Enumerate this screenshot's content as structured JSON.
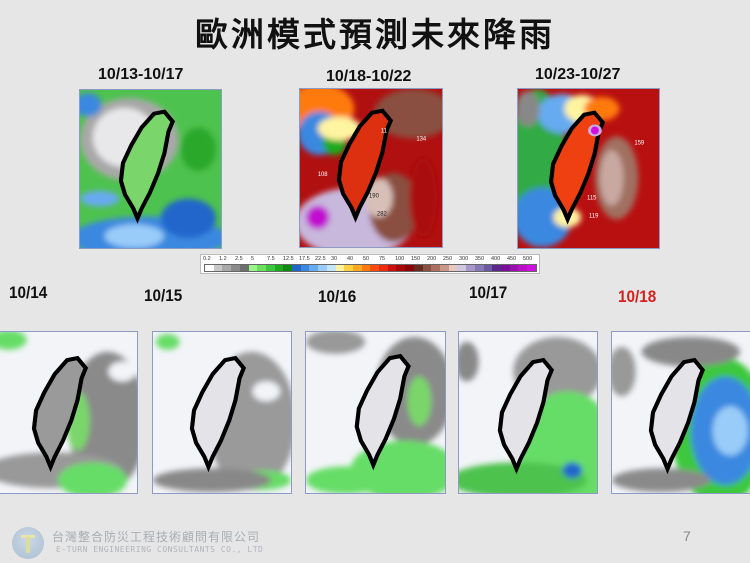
{
  "title": "歐洲模式預測未來降雨",
  "period_panels": [
    {
      "label": "10/13-10/17",
      "theme": "green"
    },
    {
      "label": "10/18-10/22",
      "theme": "red"
    },
    {
      "label": "10/23-10/27",
      "theme": "redblue"
    }
  ],
  "period_annotations": {
    "p2": [
      "11",
      "134",
      "108",
      "190",
      "282"
    ],
    "p3": [
      "159",
      "115",
      "119"
    ]
  },
  "legend": {
    "ticks": [
      "0.2",
      "1.2",
      "2.5",
      "5",
      "7.5",
      "12.5",
      "17.5",
      "22.5",
      "30",
      "40",
      "50",
      "75",
      "100",
      "150",
      "200",
      "250",
      "300",
      "350",
      "400",
      "450",
      "500"
    ],
    "colors": [
      "#ffffff",
      "#c8c8c8",
      "#a8a8a8",
      "#8a8a8a",
      "#6e6e6e",
      "#9af58a",
      "#6ee060",
      "#3cc83c",
      "#1eaa1e",
      "#118a11",
      "#2266cc",
      "#3a88e0",
      "#66aaf0",
      "#99ccf8",
      "#c4e6fc",
      "#fff4a0",
      "#ffd040",
      "#ffa820",
      "#ff7a10",
      "#ff4a10",
      "#ee2a10",
      "#cc1010",
      "#aa0808",
      "#8a0606",
      "#6a2a20",
      "#8a5040",
      "#aa7060",
      "#c89888",
      "#e8c8c0",
      "#d0c8e0",
      "#aa98cc",
      "#8878b8",
      "#6a5aa0",
      "#5a2888",
      "#7a1098",
      "#9a10b0",
      "#bb10c8",
      "#d010dc"
    ]
  },
  "daily_panels": [
    {
      "label": "10/14",
      "color": "#111111",
      "theme": "gray-green"
    },
    {
      "label": "10/15",
      "color": "#111111",
      "theme": "gray"
    },
    {
      "label": "10/16",
      "color": "#111111",
      "theme": "gray-green-south"
    },
    {
      "label": "10/17",
      "color": "#111111",
      "theme": "green-east"
    },
    {
      "label": "10/18",
      "color": "#d42020",
      "theme": "blue-east"
    }
  ],
  "footer": {
    "company_cn": "台灣整合防災工程技術顧問有限公司",
    "company_en": "E-TURN ENGINEERING CONSULTANTS CO., LTD",
    "page_number": "7"
  }
}
